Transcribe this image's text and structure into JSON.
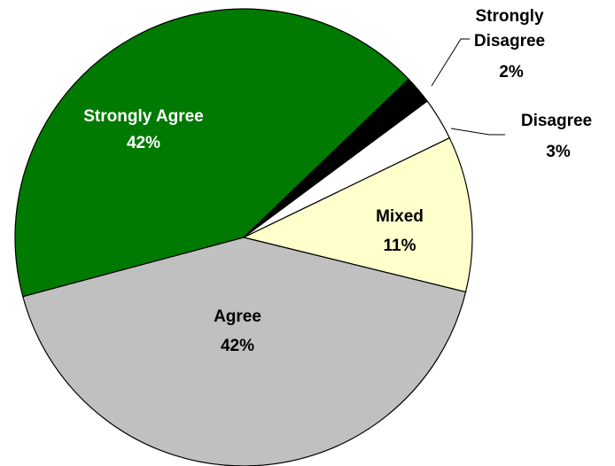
{
  "chart_data": {
    "type": "pie",
    "title": "",
    "slices": [
      {
        "name": "Strongly Agree",
        "label": "Strongly Agree",
        "percent_label": "42%",
        "value": 42,
        "color": "#007A00"
      },
      {
        "name": "Strongly Disagree",
        "label": "Strongly Disagree",
        "label_line1": "Strongly",
        "label_line2": "Disagree",
        "percent_label": "2%",
        "value": 2,
        "color": "#000000"
      },
      {
        "name": "Disagree",
        "label": "Disagree",
        "percent_label": "3%",
        "value": 3,
        "color": "#FFFFFF"
      },
      {
        "name": "Mixed",
        "label": "Mixed",
        "percent_label": "11%",
        "value": 11,
        "color": "#FFFFCC"
      },
      {
        "name": "Agree",
        "label": "Agree",
        "percent_label": "42%",
        "value": 42,
        "color": "#C0C0C0"
      }
    ],
    "legend": "none",
    "data_labels": "inside and outside with leader lines"
  }
}
